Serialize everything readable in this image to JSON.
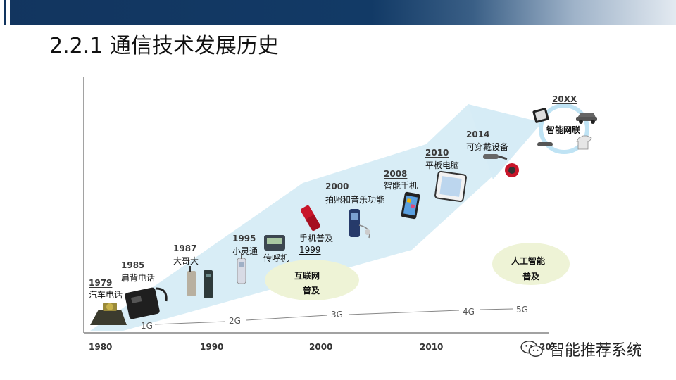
{
  "slide": {
    "title": "2.2.1 通信技术发展历史"
  },
  "timeline": {
    "axis_years": [
      "1980",
      "1990",
      "2000",
      "2010"
    ],
    "axis_trailing": "20",
    "generations": [
      "1G",
      "2G",
      "3G",
      "4G",
      "5G"
    ],
    "milestones": [
      {
        "year": "1979",
        "label": "汽车电话"
      },
      {
        "year": "1985",
        "label": "肩背电话"
      },
      {
        "year": "1987",
        "label": "大哥大"
      },
      {
        "year": "1995",
        "label": "小灵通"
      },
      {
        "year": "",
        "label": "传呼机"
      },
      {
        "year": "1999",
        "label": "手机普及"
      },
      {
        "year": "2000",
        "label": "拍照和音乐功能"
      },
      {
        "year": "2008",
        "label": "智能手机"
      },
      {
        "year": "2010",
        "label": "平板电脑"
      },
      {
        "year": "2014",
        "label": "可穿戴设备"
      },
      {
        "year": "20XX",
        "label": "智能网联"
      }
    ],
    "highlights": [
      {
        "line1": "互联网",
        "line2": "普及"
      },
      {
        "line1": "人工智能",
        "line2": "普及"
      }
    ]
  },
  "watermark": {
    "text": "智能推荐系统",
    "icon": "wechat-icon"
  },
  "colors": {
    "header_navy": "#12355f",
    "arrow_fill": "#d6ecf6",
    "ellipse_fill": "#eef3d6",
    "ring": "#bfe3f4"
  }
}
